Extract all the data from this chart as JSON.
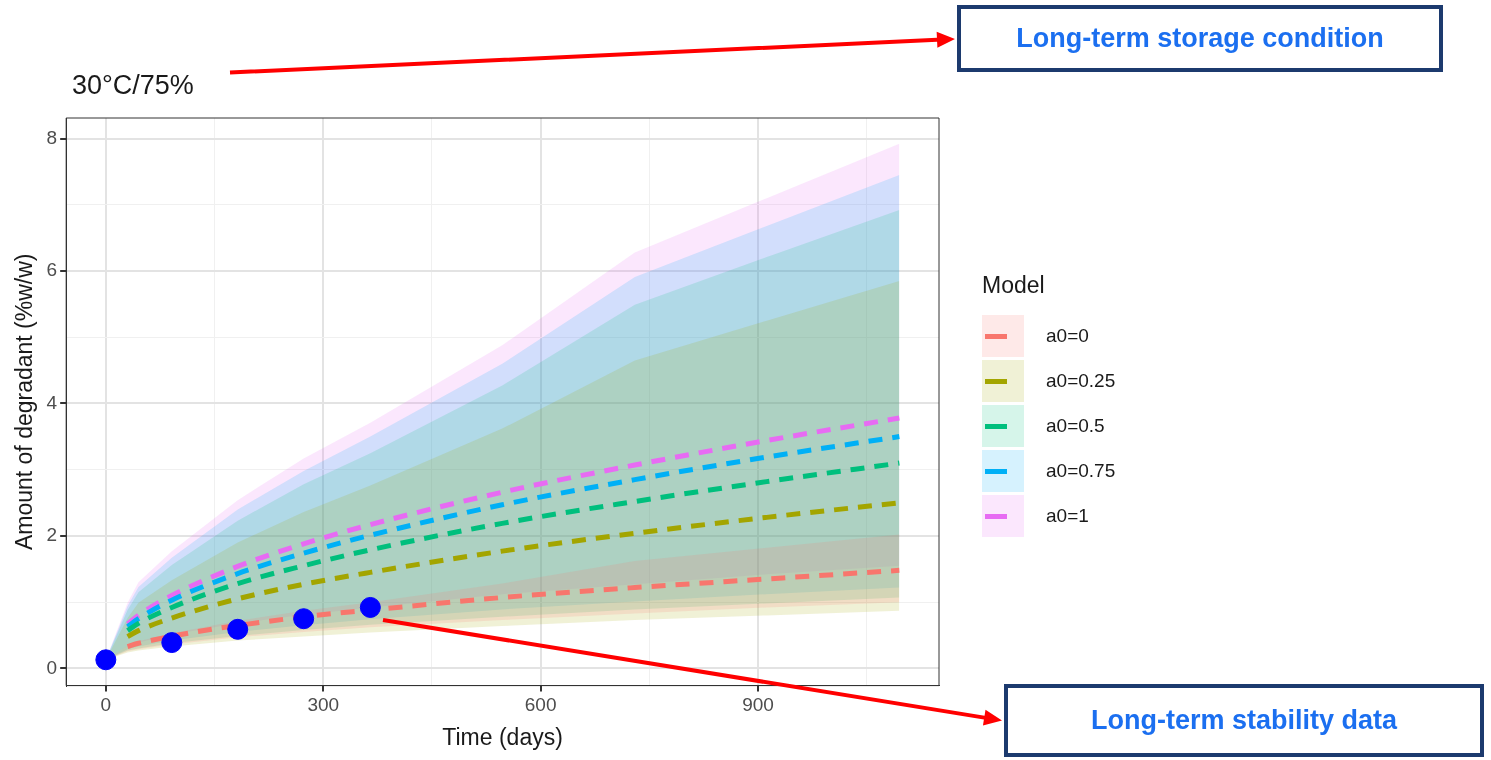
{
  "chart_data": {
    "type": "line",
    "title": "30°C/75%",
    "xlabel": "Time (days)",
    "ylabel": "Amount of degradant (%w/w)",
    "legend_title": "Model",
    "x": [
      0,
      30,
      45,
      91,
      182,
      273,
      365,
      547,
      730,
      912,
      1095
    ],
    "xlim": [
      -54.75,
      1149.75
    ],
    "xticks": [
      0,
      {
        "value": 150,
        "label": null
      },
      300,
      {
        "value": 450,
        "label": null
      },
      600,
      {
        "value": 750,
        "label": null
      },
      900,
      {
        "value": 1050,
        "label": null
      }
    ],
    "ylim": [
      -0.26,
      8.31
    ],
    "yticks": [
      0,
      {
        "value": 1,
        "label": null
      },
      2,
      {
        "value": 3,
        "label": null
      },
      4,
      {
        "value": 5,
        "label": null
      },
      6,
      {
        "value": 7,
        "label": null
      },
      8
    ],
    "grid": true,
    "legend": "right",
    "line_style": "dashed",
    "series": [
      {
        "name": "a0=0",
        "color": "#f8766d",
        "marker": "none",
        "values": [
          null,
          0.33,
          0.38,
          null,
          null,
          0.78,
          0.88,
          1.07,
          1.22,
          1.35,
          1.48
        ],
        "lower": [
          0.13,
          0.26,
          0.29,
          0.36,
          0.47,
          0.55,
          0.62,
          0.73,
          0.83,
          0.92,
          1.0
        ],
        "upper": [
          0.13,
          0.34,
          0.41,
          0.53,
          0.72,
          0.87,
          1.0,
          1.28,
          1.62,
          1.82,
          2.02
        ]
      },
      {
        "name": "a0=0.25",
        "color": "#a3a500",
        "marker": "none",
        "values": [
          null,
          0.48,
          0.57,
          0.76,
          1.05,
          1.27,
          1.45,
          1.77,
          2.04,
          2.28,
          2.5
        ],
        "lower": [
          0.13,
          0.24,
          0.27,
          0.33,
          0.42,
          0.48,
          0.54,
          0.64,
          0.73,
          0.8,
          0.87
        ],
        "upper": [
          0.13,
          0.76,
          0.99,
          1.33,
          1.9,
          2.36,
          2.76,
          3.62,
          4.65,
          5.25,
          5.85
        ]
      },
      {
        "name": "a0=0.5",
        "color": "#00bf7d",
        "marker": "none",
        "values": [
          null,
          0.57,
          0.68,
          0.92,
          1.28,
          1.55,
          1.79,
          2.19,
          2.52,
          2.82,
          3.1
        ],
        "lower": [
          0.13,
          0.27,
          0.3,
          0.38,
          0.49,
          0.58,
          0.66,
          0.78,
          0.89,
          0.98,
          1.07
        ],
        "upper": [
          0.13,
          0.88,
          1.15,
          1.56,
          2.23,
          2.78,
          3.25,
          4.27,
          5.49,
          6.21,
          6.92
        ]
      },
      {
        "name": "a0=0.75",
        "color": "#00b0f6",
        "marker": "none",
        "values": [
          null,
          0.63,
          0.75,
          1.03,
          1.43,
          1.74,
          2.01,
          2.47,
          2.85,
          3.19,
          3.5
        ],
        "lower": [
          0.13,
          0.29,
          0.33,
          0.42,
          0.55,
          0.65,
          0.74,
          0.89,
          1.01,
          1.12,
          1.22
        ],
        "upper": [
          0.13,
          0.94,
          1.23,
          1.67,
          2.4,
          2.98,
          3.5,
          4.6,
          5.91,
          6.68,
          7.45
        ]
      },
      {
        "name": "a0=1",
        "color": "#e76bf3",
        "marker": "none",
        "values": [
          null,
          0.67,
          0.8,
          1.1,
          1.54,
          1.88,
          2.17,
          2.66,
          3.07,
          3.44,
          3.78
        ],
        "lower": [
          0.13,
          0.34,
          0.39,
          0.51,
          0.68,
          0.81,
          0.92,
          1.12,
          1.27,
          1.42,
          1.55
        ],
        "upper": [
          0.13,
          0.99,
          1.3,
          1.77,
          2.54,
          3.17,
          3.71,
          4.88,
          6.28,
          7.1,
          7.92
        ]
      },
      {
        "type": "scatter",
        "color": "#0000ff",
        "marker": "circle",
        "x": [
          0,
          91,
          182,
          273,
          365
        ],
        "values": [
          0.13,
          0.39,
          0.59,
          0.75,
          0.92
        ]
      }
    ],
    "annotations": [
      "Long-term storage condition",
      "Long-term stability data"
    ]
  }
}
